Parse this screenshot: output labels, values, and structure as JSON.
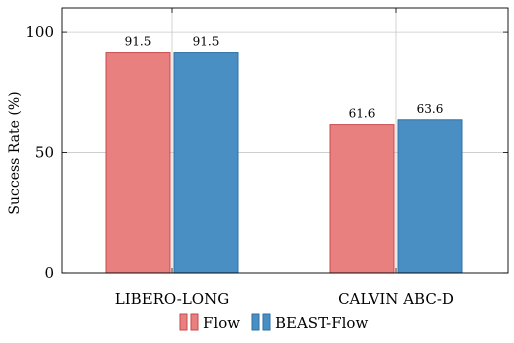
{
  "chart_data": {
    "type": "bar",
    "title": "",
    "xlabel": "",
    "ylabel": "Success Rate (%)",
    "ylim": [
      0,
      110
    ],
    "yticks": [
      0,
      50,
      100
    ],
    "grid": true,
    "legend_position": "bottom-center",
    "categories": [
      "LIBERO-LONG",
      "CALVIN ABC-D"
    ],
    "series": [
      {
        "name": "Flow",
        "values": [
          91.5,
          61.6
        ],
        "data_labels": [
          "91.5",
          "61.6"
        ],
        "color": "#e88080",
        "edge_color": "#c84a4a"
      },
      {
        "name": "BEAST-Flow",
        "values": [
          91.5,
          63.6
        ],
        "data_labels": [
          "91.5",
          "63.6"
        ],
        "color": "#4a8fc4",
        "edge_color": "#2d6fa3"
      }
    ]
  }
}
